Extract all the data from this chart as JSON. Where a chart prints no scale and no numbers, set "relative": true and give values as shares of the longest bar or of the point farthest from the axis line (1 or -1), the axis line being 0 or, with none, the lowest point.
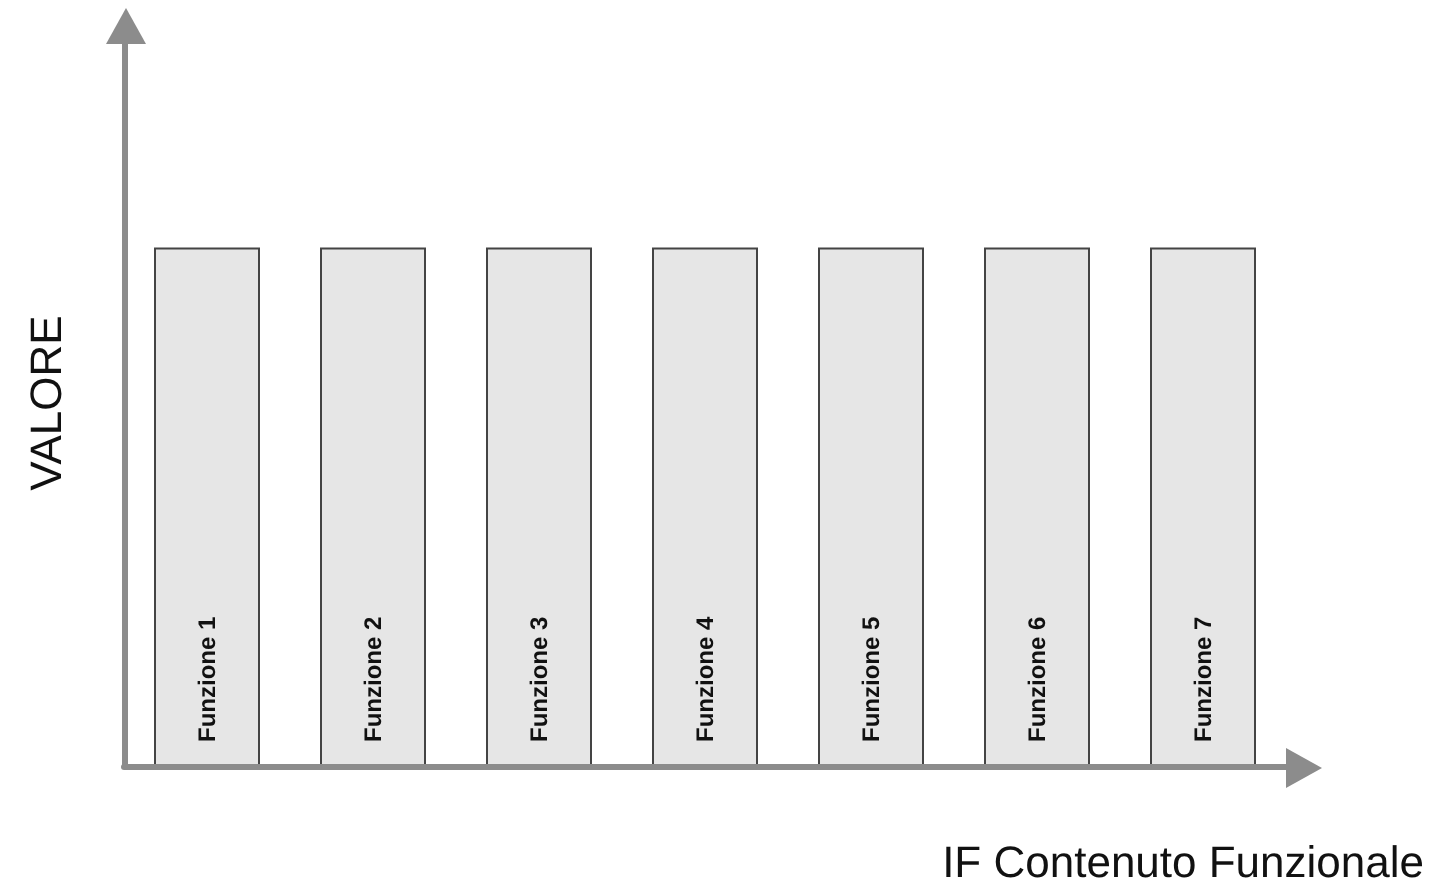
{
  "chart_data": {
    "type": "bar",
    "relative": true,
    "xlabel": "IF Contenuto Funzionale",
    "ylabel": "VALORE",
    "categories": [
      "Funzione 1",
      "Funzione 2",
      "Funzione 3",
      "Funzione 4",
      "Funzione 5",
      "Funzione 6",
      "Funzione 7"
    ],
    "values": [
      1,
      1,
      1,
      1,
      1,
      1,
      1
    ],
    "color": "#e6e6e6",
    "grid": false
  }
}
